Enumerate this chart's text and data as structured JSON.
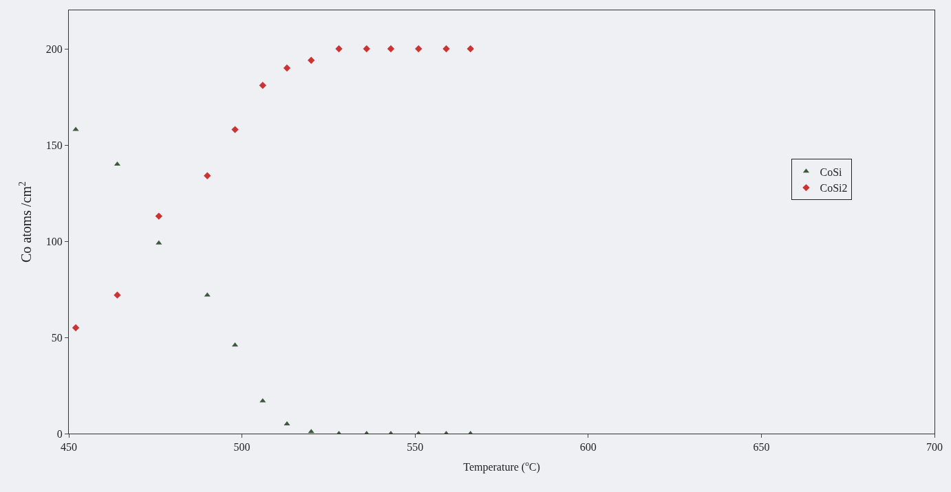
{
  "chart_data": {
    "type": "scatter",
    "xlabel": "Temperature ($^{o}$C)",
    "ylabel": "Co atoms /cm$^{2}$",
    "xlim": [
      450,
      700
    ],
    "xticks": [
      450,
      500,
      550,
      600,
      650,
      700
    ],
    "ylim": [
      0,
      220
    ],
    "yticks": [
      0,
      50,
      100,
      150,
      200
    ],
    "grid": false,
    "legend": "right",
    "series": [
      {
        "name": "CoSi",
        "color": "#3d5a3d",
        "marker": "triangle",
        "x": [
          452,
          464,
          476,
          490,
          498,
          506,
          513,
          520,
          528,
          536,
          543,
          551,
          559,
          566
        ],
        "values": [
          158,
          140,
          99,
          72,
          46,
          17,
          5,
          1,
          0,
          0,
          0,
          0,
          0,
          0
        ]
      },
      {
        "name": "CoSi2",
        "color": "#cc3333",
        "marker": "diamond",
        "x": [
          452,
          464,
          476,
          490,
          498,
          506,
          513,
          520,
          528,
          536,
          543,
          551,
          559,
          566
        ],
        "values": [
          55,
          72,
          113,
          134,
          158,
          181,
          190,
          194,
          200,
          200,
          200,
          200,
          200,
          200
        ]
      }
    ]
  }
}
